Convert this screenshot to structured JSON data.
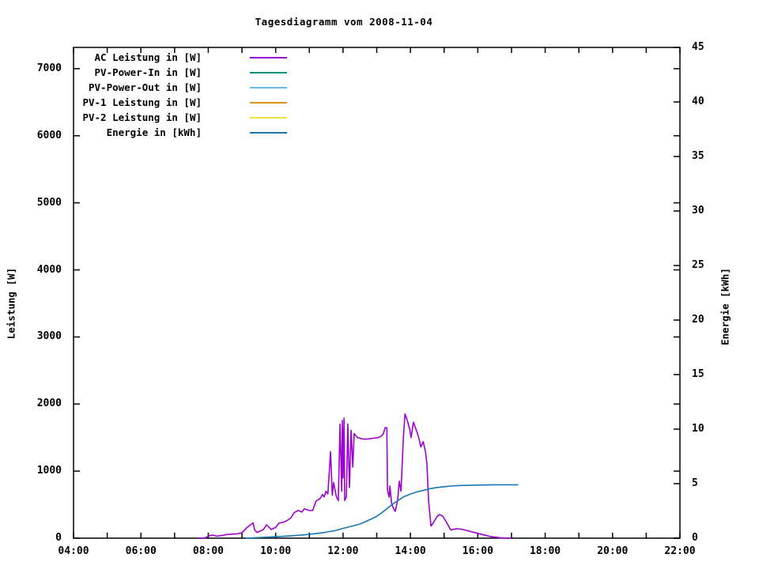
{
  "page": {
    "background_color": "#ffffff",
    "text_color": "#000000",
    "axis_color": "#000000"
  },
  "chart_data": {
    "type": "line",
    "title": "Tagesdiagramm vom 2008-11-04",
    "ylabel_left": "Leistung [W]",
    "ylabel_right": "Energie [kWh]",
    "grid": false,
    "legend_position": "top-left-inside",
    "x_axis": {
      "unit": "time of day",
      "min_hour": 4,
      "max_hour": 22,
      "minor_tick_every_hours": 1,
      "labeled_tick_every_hours": 2,
      "tick_labels": [
        "04:00",
        "06:00",
        "08:00",
        "10:00",
        "12:00",
        "14:00",
        "16:00",
        "18:00",
        "20:00",
        "22:00"
      ]
    },
    "y_axis_left": {
      "label": "Leistung [W]",
      "min": 0,
      "max_displayed": 7317,
      "tick_step": 1000,
      "tick_labels": [
        "0",
        "1000",
        "2000",
        "3000",
        "4000",
        "5000",
        "6000",
        "7000"
      ]
    },
    "y_axis_right": {
      "label": "Energie [kWh]",
      "min": 0,
      "max": 45,
      "tick_step": 5,
      "tick_labels": [
        "0",
        "5",
        "10",
        "15",
        "20",
        "25",
        "30",
        "35",
        "40",
        "45"
      ]
    },
    "series": [
      {
        "name": "AC Leistung in [W]",
        "color": "#9d00d0",
        "axis": "left",
        "points": [
          [
            7.73,
            0
          ],
          [
            7.9,
            5
          ],
          [
            8.05,
            40
          ],
          [
            8.15,
            45
          ],
          [
            8.25,
            30
          ],
          [
            8.4,
            40
          ],
          [
            8.55,
            55
          ],
          [
            8.7,
            60
          ],
          [
            8.85,
            65
          ],
          [
            9.0,
            80
          ],
          [
            9.14,
            155
          ],
          [
            9.25,
            195
          ],
          [
            9.33,
            228
          ],
          [
            9.38,
            120
          ],
          [
            9.45,
            85
          ],
          [
            9.55,
            110
          ],
          [
            9.63,
            125
          ],
          [
            9.73,
            200
          ],
          [
            9.8,
            165
          ],
          [
            9.87,
            130
          ],
          [
            10.0,
            160
          ],
          [
            10.1,
            225
          ],
          [
            10.2,
            235
          ],
          [
            10.31,
            255
          ],
          [
            10.45,
            300
          ],
          [
            10.55,
            380
          ],
          [
            10.67,
            415
          ],
          [
            10.73,
            400
          ],
          [
            10.78,
            390
          ],
          [
            10.85,
            440
          ],
          [
            10.95,
            420
          ],
          [
            11.02,
            412
          ],
          [
            11.1,
            415
          ],
          [
            11.2,
            555
          ],
          [
            11.32,
            590
          ],
          [
            11.39,
            650
          ],
          [
            11.44,
            615
          ],
          [
            11.49,
            700
          ],
          [
            11.55,
            660
          ],
          [
            11.63,
            1290
          ],
          [
            11.68,
            640
          ],
          [
            11.72,
            830
          ],
          [
            11.8,
            620
          ],
          [
            11.86,
            560
          ],
          [
            11.91,
            1700
          ],
          [
            11.96,
            700
          ],
          [
            11.98,
            1755
          ],
          [
            12.0,
            900
          ],
          [
            12.03,
            1790
          ],
          [
            12.05,
            560
          ],
          [
            12.1,
            620
          ],
          [
            12.14,
            1700
          ],
          [
            12.19,
            755
          ],
          [
            12.24,
            1610
          ],
          [
            12.29,
            1060
          ],
          [
            12.33,
            1560
          ],
          [
            12.43,
            1500
          ],
          [
            12.57,
            1480
          ],
          [
            12.73,
            1478
          ],
          [
            12.9,
            1490
          ],
          [
            13.04,
            1500
          ],
          [
            13.13,
            1520
          ],
          [
            13.2,
            1560
          ],
          [
            13.25,
            1650
          ],
          [
            13.3,
            1645
          ],
          [
            13.32,
            710
          ],
          [
            13.37,
            613
          ],
          [
            13.39,
            780
          ],
          [
            13.44,
            530
          ],
          [
            13.48,
            460
          ],
          [
            13.55,
            400
          ],
          [
            13.62,
            560
          ],
          [
            13.67,
            850
          ],
          [
            13.72,
            700
          ],
          [
            13.79,
            1500
          ],
          [
            13.84,
            1853
          ],
          [
            13.91,
            1750
          ],
          [
            13.98,
            1620
          ],
          [
            14.02,
            1500
          ],
          [
            14.09,
            1730
          ],
          [
            14.19,
            1590
          ],
          [
            14.26,
            1475
          ],
          [
            14.31,
            1360
          ],
          [
            14.38,
            1440
          ],
          [
            14.45,
            1280
          ],
          [
            14.49,
            1100
          ],
          [
            14.54,
            555
          ],
          [
            14.61,
            180
          ],
          [
            14.68,
            230
          ],
          [
            14.8,
            330
          ],
          [
            14.87,
            350
          ],
          [
            14.96,
            330
          ],
          [
            15.08,
            230
          ],
          [
            15.2,
            121
          ],
          [
            15.35,
            140
          ],
          [
            15.5,
            135
          ],
          [
            15.74,
            106
          ],
          [
            16.07,
            62
          ],
          [
            16.37,
            25
          ],
          [
            16.68,
            5
          ],
          [
            17.0,
            0
          ]
        ]
      },
      {
        "name": "PV-Power-In in [W]",
        "color": "#00927c",
        "axis": "left",
        "points": []
      },
      {
        "name": "PV-Power-Out in [W]",
        "color": "#66b8e8",
        "axis": "left",
        "points": []
      },
      {
        "name": "PV-1 Leistung in [W]",
        "color": "#dd9318",
        "axis": "left",
        "points": []
      },
      {
        "name": "PV-2 Leistung in [W]",
        "color": "#eee33f",
        "axis": "left",
        "points": []
      },
      {
        "name": "Energie in [kWh]",
        "color": "#1777b0",
        "axis": "right",
        "points": [
          [
            9.1,
            0
          ],
          [
            9.6,
            0.07
          ],
          [
            10.0,
            0.13
          ],
          [
            10.4,
            0.2
          ],
          [
            10.8,
            0.3
          ],
          [
            11.2,
            0.42
          ],
          [
            11.5,
            0.55
          ],
          [
            11.8,
            0.72
          ],
          [
            12.0,
            0.9
          ],
          [
            12.2,
            1.05
          ],
          [
            12.5,
            1.3
          ],
          [
            12.8,
            1.7
          ],
          [
            13.0,
            2.0
          ],
          [
            13.2,
            2.45
          ],
          [
            13.4,
            2.95
          ],
          [
            13.6,
            3.4
          ],
          [
            13.8,
            3.8
          ],
          [
            14.0,
            4.05
          ],
          [
            14.2,
            4.25
          ],
          [
            14.4,
            4.4
          ],
          [
            14.6,
            4.55
          ],
          [
            14.8,
            4.65
          ],
          [
            15.0,
            4.72
          ],
          [
            15.2,
            4.78
          ],
          [
            15.5,
            4.83
          ],
          [
            16.0,
            4.87
          ],
          [
            16.5,
            4.9
          ],
          [
            17.2,
            4.9
          ]
        ]
      }
    ]
  }
}
